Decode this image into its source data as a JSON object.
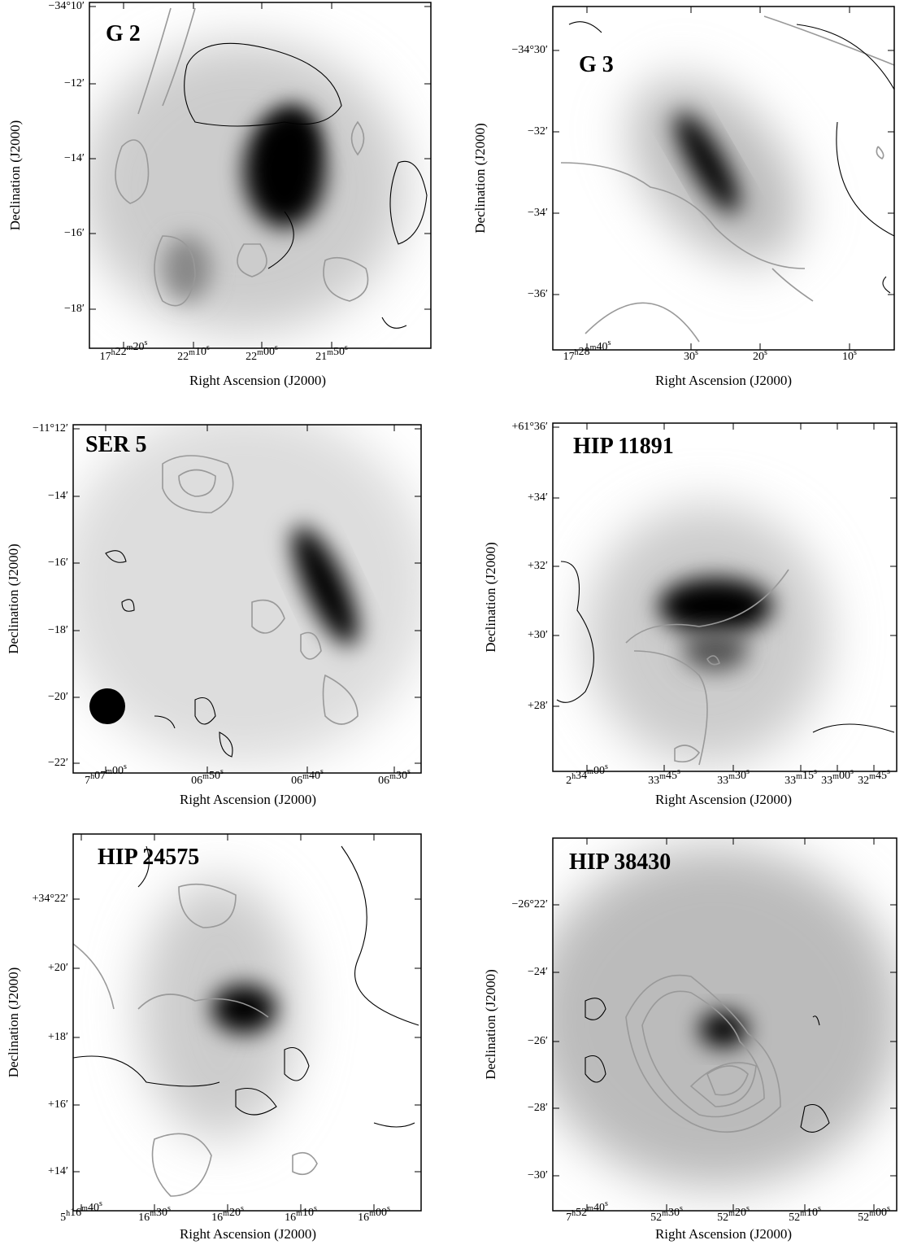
{
  "panels": [
    {
      "label": "G 2",
      "xlabel": "Right Ascension (J2000)",
      "ylabel": "Declination (J2000)",
      "yticks": [
        "−34°10′",
        "−12′",
        "−14′",
        "−16′",
        "−18′"
      ],
      "xticks": [
        "17h22m20s",
        "22m10s",
        "22m00s",
        "21m50s"
      ]
    },
    {
      "label": "G 3",
      "xlabel": "Right Ascension (J2000)",
      "ylabel": "Declination (J2000)",
      "yticks": [
        "−34°30′",
        "−32′",
        "−34′",
        "−36′"
      ],
      "xticks": [
        "17h28m40s",
        "30s",
        "20s",
        "10s"
      ]
    },
    {
      "label": "SER 5",
      "xlabel": "Right Ascension (J2000)",
      "ylabel": "Declination (J2000)",
      "yticks": [
        "−11°12′",
        "−14′",
        "−16′",
        "−18′",
        "−20′",
        "−22′"
      ],
      "xticks": [
        "7h07m00s",
        "06m50s",
        "06m40s",
        "06m30s"
      ]
    },
    {
      "label": "HIP 11891",
      "xlabel": "Right Ascension (J2000)",
      "ylabel": "Declination (J2000)",
      "yticks": [
        "+61°36′",
        "+34′",
        "+32′",
        "+30′",
        "+28′"
      ],
      "xticks": [
        "2h34m00s",
        "33m45s",
        "33m30s",
        "33m15s",
        "33m00s",
        "32m45s"
      ]
    },
    {
      "label": "HIP 24575",
      "xlabel": "Right Ascension (J2000)",
      "ylabel": "Declination (J2000)",
      "yticks": [
        "+34°22′",
        "+20′",
        "+18′",
        "+16′",
        "+14′"
      ],
      "xticks": [
        "5h16m40s",
        "16m30s",
        "16m20s",
        "16m10s",
        "16m00s"
      ]
    },
    {
      "label": "HIP 38430",
      "xlabel": "Right Ascension (J2000)",
      "ylabel": "Declination (J2000)",
      "yticks": [
        "−26°22′",
        "−24′",
        "−26′",
        "−28′",
        "−30′"
      ],
      "xticks": [
        "7h52m40s",
        "52m30s",
        "52m20s",
        "52m10s",
        "52m00s"
      ]
    }
  ]
}
